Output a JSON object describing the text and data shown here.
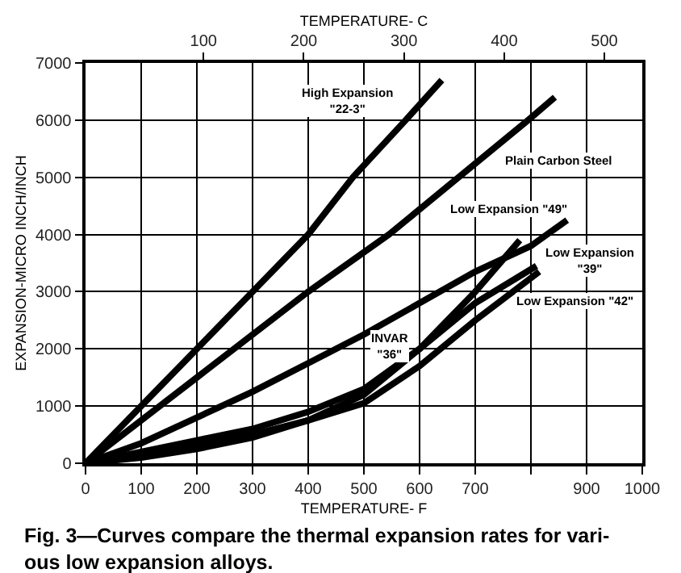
{
  "chart_data": {
    "type": "line",
    "xlabel": "TEMPERATURE- F",
    "x2label": "TEMPERATURE- C",
    "ylabel": "EXPANSION-MICRO INCH/INCH",
    "xlim": [
      0,
      1000
    ],
    "xticks": [
      0,
      100,
      200,
      300,
      400,
      500,
      600,
      700,
      {
        "value": 800,
        "label": null
      },
      900,
      1000
    ],
    "x2lim": [
      -17.8,
      537.8
    ],
    "x2ticks": [
      100,
      200,
      300,
      400,
      500
    ],
    "ylim": [
      0,
      7000
    ],
    "yticks": [
      0,
      1000,
      2000,
      3000,
      4000,
      5000,
      6000,
      7000
    ],
    "grid": true,
    "legend": false,
    "line_style": "solid",
    "marker": "none",
    "series": [
      {
        "name": "High Expansion\n\"22-3\"",
        "color": "#000000",
        "x": [
          0,
          100,
          300,
          400,
          480,
          575,
          640
        ],
        "values": [
          0,
          1000,
          3000,
          4000,
          5000,
          6000,
          6700
        ]
      },
      {
        "name": "Plain Carbon Steel",
        "color": "#000000",
        "x": [
          0,
          200,
          400,
          545,
          795,
          843
        ],
        "values": [
          0,
          1500,
          3000,
          4000,
          6000,
          6400
        ]
      },
      {
        "name": "Low Expansion \"49\"",
        "color": "#000000",
        "x": [
          0,
          100,
          200,
          300,
          400,
          500,
          600,
          700,
          800,
          865
        ],
        "values": [
          0,
          350,
          800,
          1250,
          1750,
          2250,
          2800,
          3350,
          3800,
          4250
        ]
      },
      {
        "name": "INVAR\n\"36\"",
        "color": "#000000",
        "x": [
          0,
          100,
          200,
          300,
          400,
          500,
          600,
          700,
          780
        ],
        "values": [
          0,
          100,
          250,
          450,
          750,
          1200,
          2000,
          3000,
          3900
        ]
      },
      {
        "name": "Low Expansion\n\"39\"",
        "color": "#000000",
        "x": [
          0,
          100,
          200,
          300,
          400,
          500,
          600,
          700,
          810
        ],
        "values": [
          0,
          200,
          400,
          600,
          900,
          1300,
          2000,
          2800,
          3450
        ]
      },
      {
        "name": "Low Expansion \"42\"",
        "color": "#000000",
        "x": [
          0,
          100,
          200,
          300,
          400,
          500,
          600,
          700,
          815
        ],
        "values": [
          0,
          150,
          300,
          500,
          750,
          1050,
          1700,
          2500,
          3350
        ]
      }
    ],
    "annotations": [
      "Fig. 3—Curves compare the thermal expansion rates for vari-\nous low expansion alloys."
    ]
  }
}
